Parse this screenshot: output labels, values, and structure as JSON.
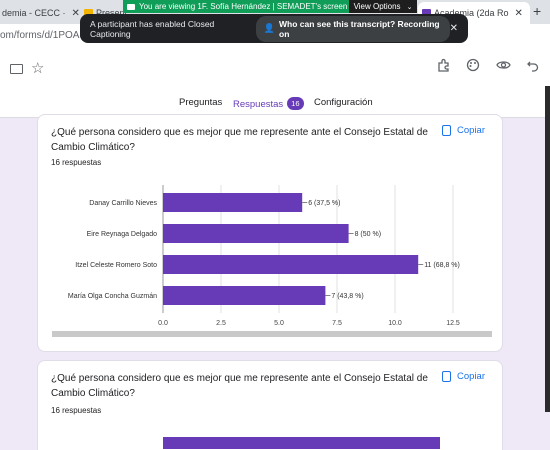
{
  "browser": {
    "tabs": [
      {
        "label": "demia - CECC ·"
      },
      {
        "label": "Present"
      },
      {
        "label": "Academia (2da Ro"
      }
    ],
    "close_glyph": "✕",
    "new_tab_glyph": "+",
    "url": "om/forms/d/1POA3"
  },
  "share": {
    "banner": "You are viewing 1F. Sofía Hernández | SEMADET's screen",
    "view_options": "View Options",
    "view_options_caret": "⌄"
  },
  "captions": {
    "message": "A participant has enabled Closed Captioning",
    "who_link": "Who can see this transcript? Recording on",
    "close_glyph": "✕"
  },
  "forms": {
    "tabs": {
      "questions": "Preguntas",
      "responses": "Respuestas",
      "responses_count": "16",
      "settings": "Configuración"
    },
    "icons": [
      "palette-icon",
      "preview-icon",
      "undo-icon",
      "addon-icon",
      "folder-icon",
      "star-icon"
    ]
  },
  "cards": [
    {
      "title": "¿Qué persona considero que es mejor que me represente ante el Consejo Estatal de Cambio Climático?",
      "responses": "16 respuestas",
      "copy_label": "Copiar"
    },
    {
      "title": "¿Qué persona considero que es mejor que me represente ante el Consejo Estatal de Cambio Climático?",
      "responses": "16 respuestas",
      "copy_label": "Copiar"
    }
  ],
  "chart_data": [
    {
      "type": "bar",
      "orientation": "horizontal",
      "categories": [
        "Danay Carrillo Nieves",
        "Eire Reynaga Delgado",
        "Itzel Celeste Romero Soto",
        "María Olga Concha Guzmán"
      ],
      "values": [
        6,
        8,
        11,
        7
      ],
      "value_labels": [
        "6 (37,5 %)",
        "8 (50 %)",
        "11 (68,8 %)",
        "7 (43,8 %)"
      ],
      "ticks": [
        "0,0",
        "2,5",
        "5,0",
        "7,5",
        "10,0",
        "12,5"
      ],
      "xlim": [
        0,
        12.5
      ],
      "grid": true,
      "color": "#673ab7"
    },
    {
      "type": "bar",
      "orientation": "horizontal",
      "values_visible": "partial",
      "color": "#673ab7"
    }
  ]
}
